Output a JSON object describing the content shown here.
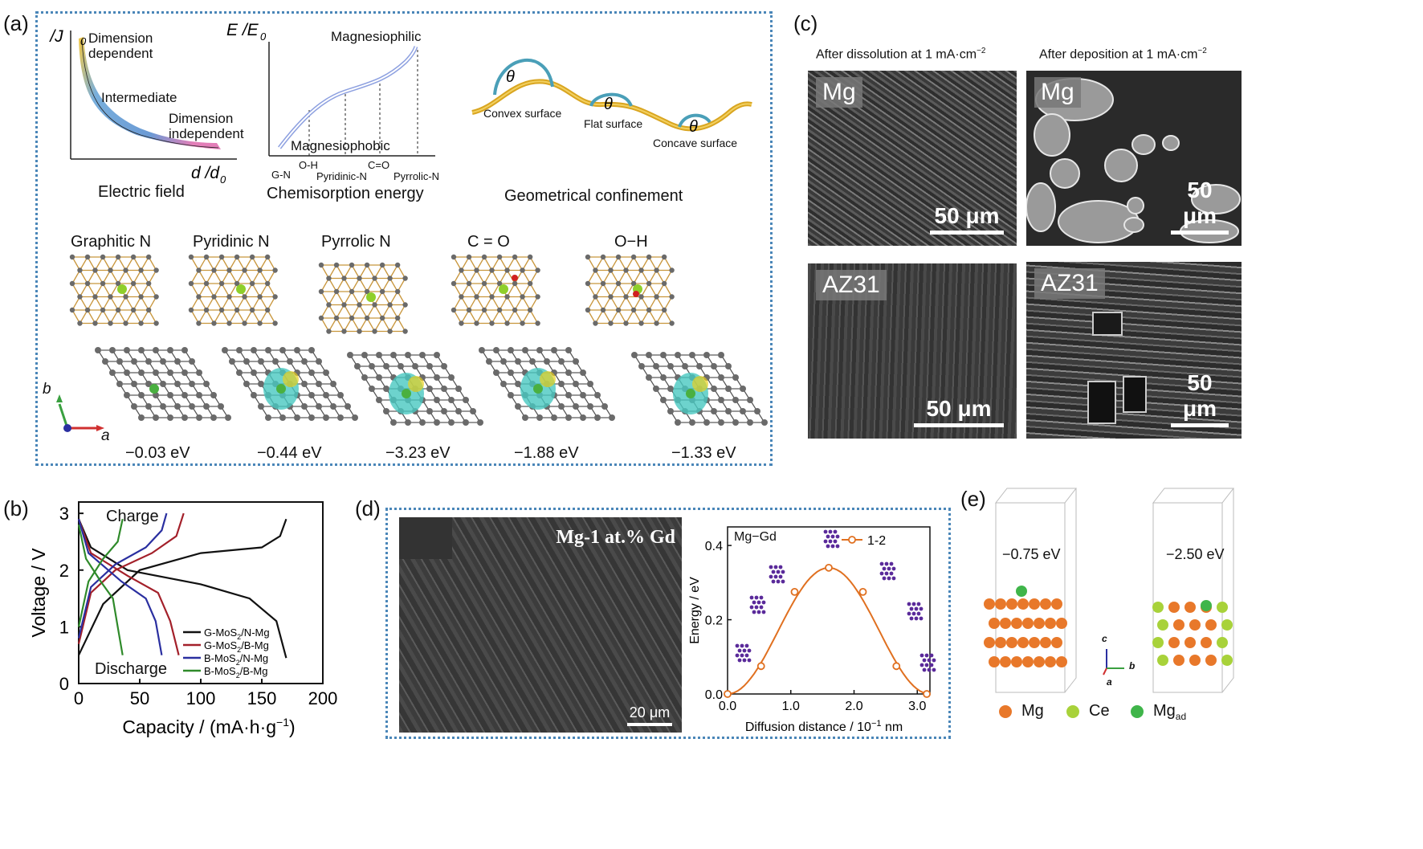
{
  "panel_a": {
    "letter": "(a)",
    "electric": {
      "yaxis": "J /J",
      "yaxis_sub": "0",
      "xaxis": "d /d",
      "xaxis_sub": "0",
      "label_top": "Dimension dependent",
      "label_mid": "Intermediate",
      "label_end": "Dimension independent",
      "caption": "Electric field"
    },
    "chemisorption": {
      "yaxis": "E /E",
      "yaxis_sub": "0",
      "top": "Magnesiophilic",
      "bottom": "Magnesiophobic",
      "ticks": [
        "G-N",
        "O-H",
        "Pyridinic-N",
        "C=O",
        "Pyrrolic-N"
      ],
      "caption": "Chemisorption energy"
    },
    "geometric": {
      "convex": "Convex surface",
      "flat": "Flat surface",
      "concave": "Concave surface",
      "theta": "θ",
      "caption": "Geometrical confinement"
    },
    "structures": [
      {
        "name": "Graphitic N",
        "energy": "−0.03 eV"
      },
      {
        "name": "Pyridinic N",
        "energy": "−0.44 eV"
      },
      {
        "name": "Pyrrolic N",
        "energy": "−3.23 eV"
      },
      {
        "name": "C = O",
        "energy": "−1.88 eV"
      },
      {
        "name": "O−H",
        "energy": "−1.33 eV"
      }
    ],
    "axes": {
      "a": "a",
      "b": "b"
    }
  },
  "panel_b": {
    "letter": "(b)",
    "charge": "Charge",
    "discharge": "Discharge"
  },
  "panel_c": {
    "letter": "(c)",
    "col1": "After dissolution at 1 mA·cm",
    "col2": "After deposition at 1 mA·cm",
    "sup": "−2",
    "images": [
      {
        "tag": "Mg",
        "scale": "50 μm"
      },
      {
        "tag": "Mg",
        "scale": "50 μm"
      },
      {
        "tag": "AZ31",
        "scale": "50 μm"
      },
      {
        "tag": "AZ31",
        "scale": "50 μm"
      }
    ]
  },
  "panel_d": {
    "letter": "(d)",
    "sem_tag": "Mg-1 at.% Gd",
    "sem_scale": "20 μm",
    "plot_tag": "Mg−Gd"
  },
  "panel_e": {
    "letter": "(e)",
    "left_energy": "−0.75 eV",
    "right_energy": "−2.50 eV",
    "legend": [
      {
        "name": "Mg",
        "color": "#e8782a"
      },
      {
        "name": "Ce",
        "color": "#a8d23a"
      },
      {
        "name": "Mg",
        "sub": "ad",
        "color": "#3fb54a"
      }
    ],
    "axes": {
      "c": "c",
      "b": "b",
      "a": "a"
    }
  },
  "chart_data": [
    {
      "type": "line",
      "panel": "b",
      "xlabel": "Capacity / (mA·h·g",
      "xlabel_sup": "−1",
      "xlabel_end": ")",
      "ylabel": "Voltage / V",
      "xlim": [
        0,
        200
      ],
      "ylim": [
        0,
        3.2
      ],
      "xticks": [
        0,
        50,
        100,
        150,
        200
      ],
      "yticks": [
        0,
        1,
        2,
        3
      ],
      "legend_position": "bottom-right",
      "series": [
        {
          "name": "G-MoS2/N-Mg",
          "label_main": "G-MoS",
          "label_sub": "2",
          "label_end": "/N-Mg",
          "color": "#111111",
          "charge": [
            [
              0,
              0.5
            ],
            [
              20,
              1.4
            ],
            [
              50,
              2.0
            ],
            [
              100,
              2.3
            ],
            [
              150,
              2.4
            ],
            [
              165,
              2.6
            ],
            [
              170,
              2.9
            ]
          ],
          "discharge": [
            [
              0,
              2.9
            ],
            [
              10,
              2.4
            ],
            [
              40,
              2.0
            ],
            [
              100,
              1.75
            ],
            [
              140,
              1.5
            ],
            [
              162,
              1.1
            ],
            [
              170,
              0.45
            ]
          ]
        },
        {
          "name": "G-MoS2/B-Mg",
          "label_main": "G-MoS",
          "label_sub": "2",
          "label_end": "/B-Mg",
          "color": "#a3202a",
          "charge": [
            [
              0,
              0.7
            ],
            [
              10,
              1.6
            ],
            [
              30,
              2.0
            ],
            [
              60,
              2.3
            ],
            [
              80,
              2.6
            ],
            [
              86,
              3.0
            ]
          ],
          "discharge": [
            [
              0,
              2.9
            ],
            [
              10,
              2.3
            ],
            [
              40,
              1.9
            ],
            [
              65,
              1.6
            ],
            [
              75,
              1.1
            ],
            [
              82,
              0.5
            ]
          ]
        },
        {
          "name": "B-MoS2/N-Mg",
          "label_main": "B-MoS",
          "label_sub": "2",
          "label_end": "/N-Mg",
          "color": "#2a2fa0",
          "charge": [
            [
              0,
              0.8
            ],
            [
              10,
              1.7
            ],
            [
              30,
              2.1
            ],
            [
              55,
              2.4
            ],
            [
              68,
              2.7
            ],
            [
              72,
              3.0
            ]
          ],
          "discharge": [
            [
              0,
              2.9
            ],
            [
              8,
              2.3
            ],
            [
              35,
              1.8
            ],
            [
              55,
              1.5
            ],
            [
              63,
              1.1
            ],
            [
              68,
              0.5
            ]
          ]
        },
        {
          "name": "B-MoS2/B-Mg",
          "label_main": "B-MoS",
          "label_sub": "2",
          "label_end": "/B-Mg",
          "color": "#2f8a2a",
          "charge": [
            [
              0,
              1.0
            ],
            [
              8,
              1.8
            ],
            [
              20,
              2.2
            ],
            [
              32,
              2.5
            ],
            [
              36,
              2.9
            ]
          ],
          "discharge": [
            [
              0,
              2.8
            ],
            [
              6,
              2.2
            ],
            [
              18,
              1.8
            ],
            [
              28,
              1.5
            ],
            [
              32,
              1.0
            ],
            [
              36,
              0.5
            ]
          ]
        }
      ]
    },
    {
      "type": "line",
      "panel": "d",
      "xlabel": "Diffusion distance / 10",
      "xlabel_sup": "−1",
      "xlabel_end": " nm",
      "ylabel": "Energy / eV",
      "xlim": [
        0,
        3.2
      ],
      "ylim": [
        0,
        0.45
      ],
      "xticks": [
        0.0,
        1.0,
        2.0,
        3.0
      ],
      "xtick_labels": [
        "0.0",
        "1.0",
        "2.0",
        "3.0"
      ],
      "yticks": [
        0.0,
        0.2,
        0.4
      ],
      "ytick_labels": [
        "0.0",
        "0.2",
        "0.4"
      ],
      "legend_position": "top-right",
      "series": [
        {
          "name": "1-2",
          "color": "#e07020",
          "points": [
            [
              0.0,
              0.0
            ],
            [
              0.53,
              0.075
            ],
            [
              1.06,
              0.275
            ],
            [
              1.6,
              0.34
            ],
            [
              2.14,
              0.275
            ],
            [
              2.67,
              0.075
            ],
            [
              3.15,
              0.0
            ]
          ]
        }
      ]
    }
  ]
}
